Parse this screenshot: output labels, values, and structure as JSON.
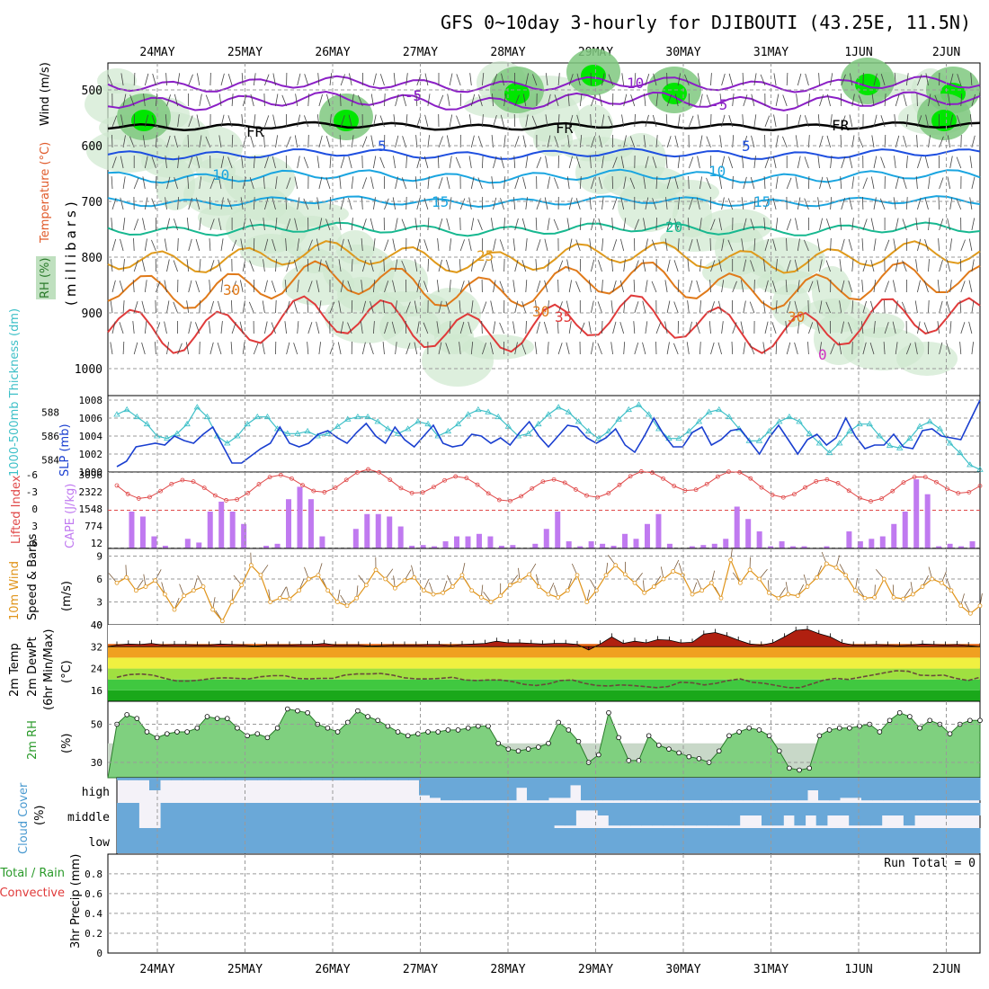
{
  "title": "GFS 0~10day 3-hourly for DJIBOUTI (43.25E, 11.5N)",
  "dates": [
    "24MAY",
    "25MAY",
    "26MAY",
    "27MAY",
    "28MAY",
    "29MAY",
    "30MAY",
    "31MAY",
    "1JUN",
    "2JUN"
  ],
  "run_total": "Run Total = 0",
  "colors": {
    "temp_purple": "#8b1fc6",
    "temp_blue": "#1e4fe0",
    "temp_cyan": "#1aa5e0",
    "temp_teal": "#17b890",
    "temp_orange": "#e09a1a",
    "temp_dark_orange": "#e07a1a",
    "temp_red": "#e03a3a",
    "rh_fill": "#bfe0bf",
    "rh_bright": "#00e600",
    "slp": "#1a3fd0",
    "thickness": "#3ec0c8",
    "lifted": "#e04848",
    "cape": "#c07af0",
    "wind10m": "#e0941a",
    "cloud": "#6aa8d8",
    "grid": "#9a9a9a"
  },
  "panels": {
    "upper": {
      "ylabel_rh": "RH (%)",
      "ylabel_temp": "Temperature (°C)",
      "ylabel_wind": "Wind (m/s)",
      "ylabel_p": "(millibars)",
      "ticks": [
        "500",
        "600",
        "700",
        "800",
        "900",
        "1000"
      ],
      "contour_labels": [
        "-5",
        "-5",
        "10",
        "-5",
        "FR",
        "FR",
        "FR",
        "5",
        "5",
        "10",
        "10",
        "15",
        "15",
        "20",
        "25",
        "30",
        "30",
        "30",
        "35",
        "0"
      ]
    },
    "slp": {
      "ylabel_thick": "1000-500mb Thickness (dm)",
      "ylabel_slp": "SLP (mb)",
      "ticks_left": [
        "588",
        "586",
        "584"
      ],
      "ticks_right": [
        "1008",
        "1006",
        "1004",
        "1002",
        "1000"
      ]
    },
    "li": {
      "ylabel_li": "Lifted Index",
      "ylabel_cape": "CAPE (J/kg)",
      "ticks_left": [
        "-6",
        "-3",
        "0",
        "3",
        "6"
      ],
      "ticks_right": [
        "3096",
        "2322",
        "1548",
        "774",
        "12"
      ]
    },
    "wind": {
      "ylabel_a": "10m Wind",
      "ylabel_b": "Speed & Barbs",
      "unit": "(m/s)",
      "ticks": [
        "9",
        "6",
        "3",
        "0"
      ]
    },
    "temp2m": {
      "ylabel_a": "2m Temp",
      "ylabel_b": "2m DewPt",
      "ylabel_c": "(6hr Min/Max)",
      "unit": "(°C)",
      "ticks": [
        "40",
        "32",
        "24",
        "16"
      ]
    },
    "rh2m": {
      "ylabel": "2m RH",
      "unit": "(%)",
      "ticks": [
        "50",
        "30"
      ]
    },
    "cloud": {
      "ylabel": "Cloud Cover",
      "unit": "(%)",
      "rows": [
        "high",
        "middle",
        "low"
      ]
    },
    "precip": {
      "ylabel_a": "Total / Rain",
      "ylabel_b": "Convective",
      "ylabel_c": "3hr Precip (mm)",
      "ticks": [
        "0.8",
        "0.6",
        "0.4",
        "0.2",
        "0"
      ]
    }
  },
  "chart_data": [
    {
      "type": "line",
      "title": "SLP (mb)",
      "x_start": "23MAY 18Z",
      "x_step_hours": 3,
      "ylim": [
        1000,
        1008
      ],
      "values": [
        1000.6,
        1001.2,
        1002.8,
        1003.0,
        1003.2,
        1003.0,
        1004.0,
        1003.5,
        1003.2,
        1004.2,
        1005.0,
        1003.0,
        1001.0,
        1001.0,
        1001.8,
        1002.6,
        1003.2,
        1005.0,
        1003.2,
        1002.8,
        1003.2,
        1004.2,
        1004.6,
        1003.8,
        1003.2,
        1004.4,
        1005.4,
        1004.0,
        1003.2,
        1005.0,
        1003.6,
        1002.8,
        1004.0,
        1005.2,
        1003.2,
        1002.8,
        1003.0,
        1004.2,
        1004.0,
        1003.2,
        1003.8,
        1003.0,
        1004.4,
        1005.6,
        1004.0,
        1002.8,
        1004.0,
        1005.2,
        1005.0,
        1003.8,
        1003.2,
        1003.8,
        1004.8,
        1003.0,
        1002.2,
        1004.0,
        1006.0,
        1004.2,
        1002.8,
        1002.8,
        1004.4,
        1005.0,
        1003.0,
        1003.6,
        1004.6,
        1004.8,
        1003.4,
        1002.0,
        1003.8,
        1005.2,
        1003.6,
        1002.0,
        1003.6,
        1004.2,
        1003.0,
        1003.8,
        1006.0,
        1004.0,
        1002.6,
        1003.0,
        1003.0,
        1004.2,
        1002.8,
        1002.6,
        1004.6,
        1004.8,
        1004.0,
        1003.8,
        1003.6,
        1005.8,
        1008.0
      ]
    },
    {
      "type": "line",
      "title": "1000-500mb Thickness (dm)",
      "x_start": "23MAY 18Z",
      "x_step_hours": 3,
      "ylim": [
        583,
        589
      ],
      "values": [
        587.8,
        588.2,
        587.6,
        587.0,
        586.0,
        585.8,
        586.2,
        587.0,
        588.4,
        587.6,
        586.0,
        585.4,
        586.0,
        587.0,
        587.6,
        587.6,
        586.6,
        586.2,
        586.2,
        586.4,
        586.0,
        586.2,
        586.8,
        587.4,
        587.6,
        587.6,
        587.2,
        586.6,
        586.2,
        586.6,
        587.2,
        587.0,
        586.0,
        586.4,
        587.0,
        587.8,
        588.2,
        588.0,
        587.6,
        586.8,
        586.0,
        586.2,
        587.0,
        587.8,
        588.4,
        588.0,
        587.2,
        586.4,
        585.8,
        586.4,
        587.4,
        588.2,
        588.6,
        587.8,
        586.6,
        585.8,
        585.8,
        586.4,
        587.2,
        588.0,
        588.2,
        587.6,
        586.6,
        585.6,
        585.6,
        586.4,
        587.2,
        587.6,
        587.2,
        586.2,
        585.4,
        584.6,
        585.4,
        586.4,
        587.0,
        587.0,
        586.0,
        585.2,
        585.0,
        585.8,
        586.8,
        587.2,
        586.6,
        585.4,
        584.6,
        583.6,
        583.2
      ]
    },
    {
      "type": "bar",
      "title": "CAPE (J/kg)",
      "ylim": [
        12,
        3096
      ],
      "values": [
        0,
        1500,
        1300,
        500,
        120,
        0,
        400,
        250,
        1500,
        1900,
        1500,
        1000,
        0,
        120,
        200,
        2000,
        2500,
        2000,
        500,
        0,
        0,
        800,
        1400,
        1400,
        1300,
        900,
        120,
        150,
        100,
        300,
        500,
        500,
        600,
        500,
        120,
        150,
        0,
        200,
        800,
        1500,
        300,
        100,
        300,
        200,
        120,
        600,
        400,
        1000,
        1400,
        200,
        0,
        100,
        150,
        200,
        400,
        1700,
        1200,
        700,
        100,
        300,
        100,
        100,
        0,
        100,
        0,
        700,
        300,
        400,
        500,
        1000,
        1500,
        2800,
        2200,
        100,
        200,
        100,
        300
      ]
    },
    {
      "type": "line",
      "title": "10m Wind Speed (m/s)",
      "ylim": [
        0,
        10
      ],
      "values": [
        5.5,
        6.2,
        4.5,
        5.0,
        5.8,
        4.0,
        2.0,
        3.8,
        4.5,
        5.0,
        2.0,
        0.5,
        3.0,
        5.2,
        7.8,
        6.5,
        3.0,
        3.5,
        3.4,
        4.5,
        6.0,
        6.5,
        4.5,
        3.0,
        2.5,
        3.5,
        5.2,
        7.2,
        6.0,
        4.8,
        5.8,
        6.2,
        4.5,
        4.0,
        4.2,
        5.0,
        6.5,
        4.5,
        3.6,
        3.0,
        3.8,
        5.2,
        5.8,
        6.6,
        5.0,
        4.0,
        3.6,
        4.5,
        6.5,
        3.0,
        4.5,
        6.5,
        7.8,
        6.6,
        5.5,
        4.2,
        5.0,
        6.0,
        7.0,
        6.5,
        4.0,
        4.5,
        5.5,
        3.5,
        8.5,
        5.5,
        7.2,
        6.0,
        4.2,
        3.5,
        4.0,
        3.8,
        5.0,
        6.2,
        8.0,
        7.5,
        6.5,
        4.5,
        3.5,
        3.6,
        6.0,
        3.6,
        3.4,
        4.0,
        5.0,
        6.0,
        5.5,
        4.5,
        2.5,
        1.5,
        2.5
      ]
    },
    {
      "type": "area",
      "title": "2m Temp (°C)",
      "ylim": [
        12,
        40
      ],
      "values": [
        32.6,
        33.0,
        32.8,
        33.2,
        32.6,
        32.8,
        32.8,
        32.6,
        32.6,
        33.0,
        32.8,
        32.6,
        32.2,
        32.6,
        32.6,
        32.6,
        32.8,
        32.8,
        33.2,
        32.6,
        32.6,
        32.6,
        32.2,
        32.4,
        32.6,
        32.6,
        32.6,
        32.8,
        32.8,
        32.4,
        32.8,
        33.0,
        33.2,
        34.0,
        33.4,
        33.4,
        33.2,
        33.0,
        33.2,
        33.2,
        32.8,
        30.8,
        33.0,
        35.6,
        33.2,
        34.0,
        33.4,
        34.6,
        34.4,
        33.4,
        33.6,
        36.6,
        37.2,
        36.0,
        34.4,
        33.0,
        32.6,
        33.4,
        35.6,
        38.0,
        38.4,
        36.8,
        35.6,
        33.4,
        32.6,
        32.6,
        32.8,
        32.6,
        32.4,
        32.6,
        33.0,
        32.8,
        32.6,
        32.8,
        32.4,
        32.0
      ]
    },
    {
      "type": "line",
      "title": "2m DewPt (°C)",
      "ylim": [
        12,
        40
      ],
      "values": [
        20.8,
        21.8,
        22.0,
        21.6,
        20.4,
        19.4,
        19.4,
        19.8,
        20.4,
        20.6,
        20.4,
        20.2,
        21.0,
        21.4,
        21.4,
        20.4,
        20.2,
        20.4,
        20.4,
        21.6,
        22.0,
        22.0,
        22.2,
        21.6,
        20.6,
        20.2,
        20.2,
        20.4,
        20.8,
        19.8,
        19.6,
        19.8,
        19.8,
        19.2,
        18.2,
        17.8,
        18.4,
        19.6,
        19.8,
        18.6,
        17.8,
        17.6,
        18.0,
        17.8,
        17.4,
        17.0,
        17.4,
        19.0,
        18.8,
        18.0,
        18.6,
        19.6,
        20.2,
        19.0,
        18.6,
        17.8,
        17.0,
        17.0,
        18.4,
        19.8,
        20.4,
        20.0,
        20.8,
        21.6,
        22.4,
        23.2,
        23.0,
        21.6,
        21.4,
        21.6,
        20.4,
        19.6,
        20.8
      ]
    },
    {
      "type": "area",
      "title": "2m RH (%)",
      "ylim": [
        22,
        62
      ],
      "values": [
        50,
        55,
        53,
        46,
        43,
        45,
        46,
        46,
        48,
        54,
        53,
        53,
        48,
        44,
        45,
        43,
        48,
        58,
        57,
        56,
        50,
        48,
        46,
        51,
        57,
        54,
        52,
        49,
        46,
        44,
        45,
        46,
        46,
        47,
        47,
        48,
        49,
        49,
        40,
        37,
        36,
        37,
        38,
        40,
        51,
        47,
        41,
        30,
        34,
        56,
        43,
        31,
        31,
        44,
        39,
        37,
        35,
        33,
        32,
        30,
        36,
        44,
        46,
        48,
        47,
        44,
        36,
        27,
        26,
        27,
        44,
        47,
        48,
        48,
        49,
        50,
        46,
        52,
        56,
        54,
        48,
        52,
        50,
        45,
        50,
        52,
        52
      ]
    },
    {
      "type": "table",
      "title": "Cloud Cover (%)",
      "rows": [
        "high",
        "middle",
        "low"
      ],
      "levels": [
        [
          0.1,
          0.1,
          0.1,
          0.5,
          0.1,
          0.1,
          0.1,
          0.1,
          0.1,
          0.1,
          0.1,
          0.1,
          0.1,
          0.1,
          0.1,
          0.1,
          0.1,
          0.1,
          0.1,
          0.1,
          0.1,
          0.1,
          0.1,
          0.1,
          0.1,
          0.1,
          0.1,
          0.1,
          0.7,
          0.8,
          0.9,
          0.9,
          0.9,
          0.9,
          0.9,
          0.9,
          0.9,
          0.4,
          0.9,
          0.9,
          0.8,
          0.8,
          0.3,
          0.9,
          0.9,
          0.9,
          0.9,
          0.9,
          0.9,
          0.9,
          0.9,
          0.9,
          0.9,
          0.9,
          0.9,
          0.9,
          0.9,
          0.9,
          0.9,
          0.9,
          0.9,
          0.9,
          0.9,
          0.9,
          0.5,
          0.9,
          0.9,
          0.8,
          0.8,
          0.9,
          0.9,
          0.9,
          0.9,
          0.9,
          0.9,
          0.9,
          0.9,
          0.9,
          0.9,
          0.9
        ],
        [
          1,
          1,
          0,
          0,
          1,
          1,
          1,
          1,
          1,
          1,
          1,
          1,
          1,
          1,
          1,
          1,
          1,
          1,
          1,
          1,
          1,
          1,
          1,
          1,
          1,
          1,
          1,
          1,
          1,
          1,
          1,
          1,
          1,
          1,
          1,
          1,
          1,
          1,
          1,
          1,
          0.9,
          0.9,
          0.3,
          0.3,
          0.5,
          0.9,
          0.9,
          0.9,
          0.9,
          0.9,
          0.9,
          0.9,
          0.9,
          0.9,
          0.9,
          0.9,
          0.9,
          0.5,
          0.5,
          0.9,
          0.9,
          0.5,
          0.9,
          0.5,
          0.9,
          0.5,
          0.5,
          0.9,
          0.9,
          0.9,
          0.5,
          0.5,
          0.9,
          0.5,
          0.5,
          0.5,
          0.5,
          0.5,
          0.5
        ],
        [
          1,
          1,
          1,
          1,
          1,
          1,
          1,
          1,
          1,
          1,
          1,
          1,
          1,
          1,
          1,
          1,
          1,
          1,
          1,
          1,
          1,
          1,
          1,
          1,
          1,
          1,
          1,
          1,
          1,
          1,
          1,
          1,
          1,
          1,
          1,
          1,
          1,
          1,
          1,
          1,
          1,
          1,
          1,
          1,
          1,
          1,
          1,
          1,
          1,
          1,
          1,
          1,
          1,
          1,
          1,
          1,
          1,
          1,
          1,
          1,
          1,
          1,
          1,
          1,
          1,
          1,
          1,
          1,
          1,
          1,
          1,
          1,
          1,
          1,
          1,
          1,
          1,
          1,
          1
        ]
      ]
    },
    {
      "type": "bar",
      "title": "3hr Precip (mm)",
      "ylim": [
        0,
        1.0
      ],
      "values": []
    }
  ]
}
